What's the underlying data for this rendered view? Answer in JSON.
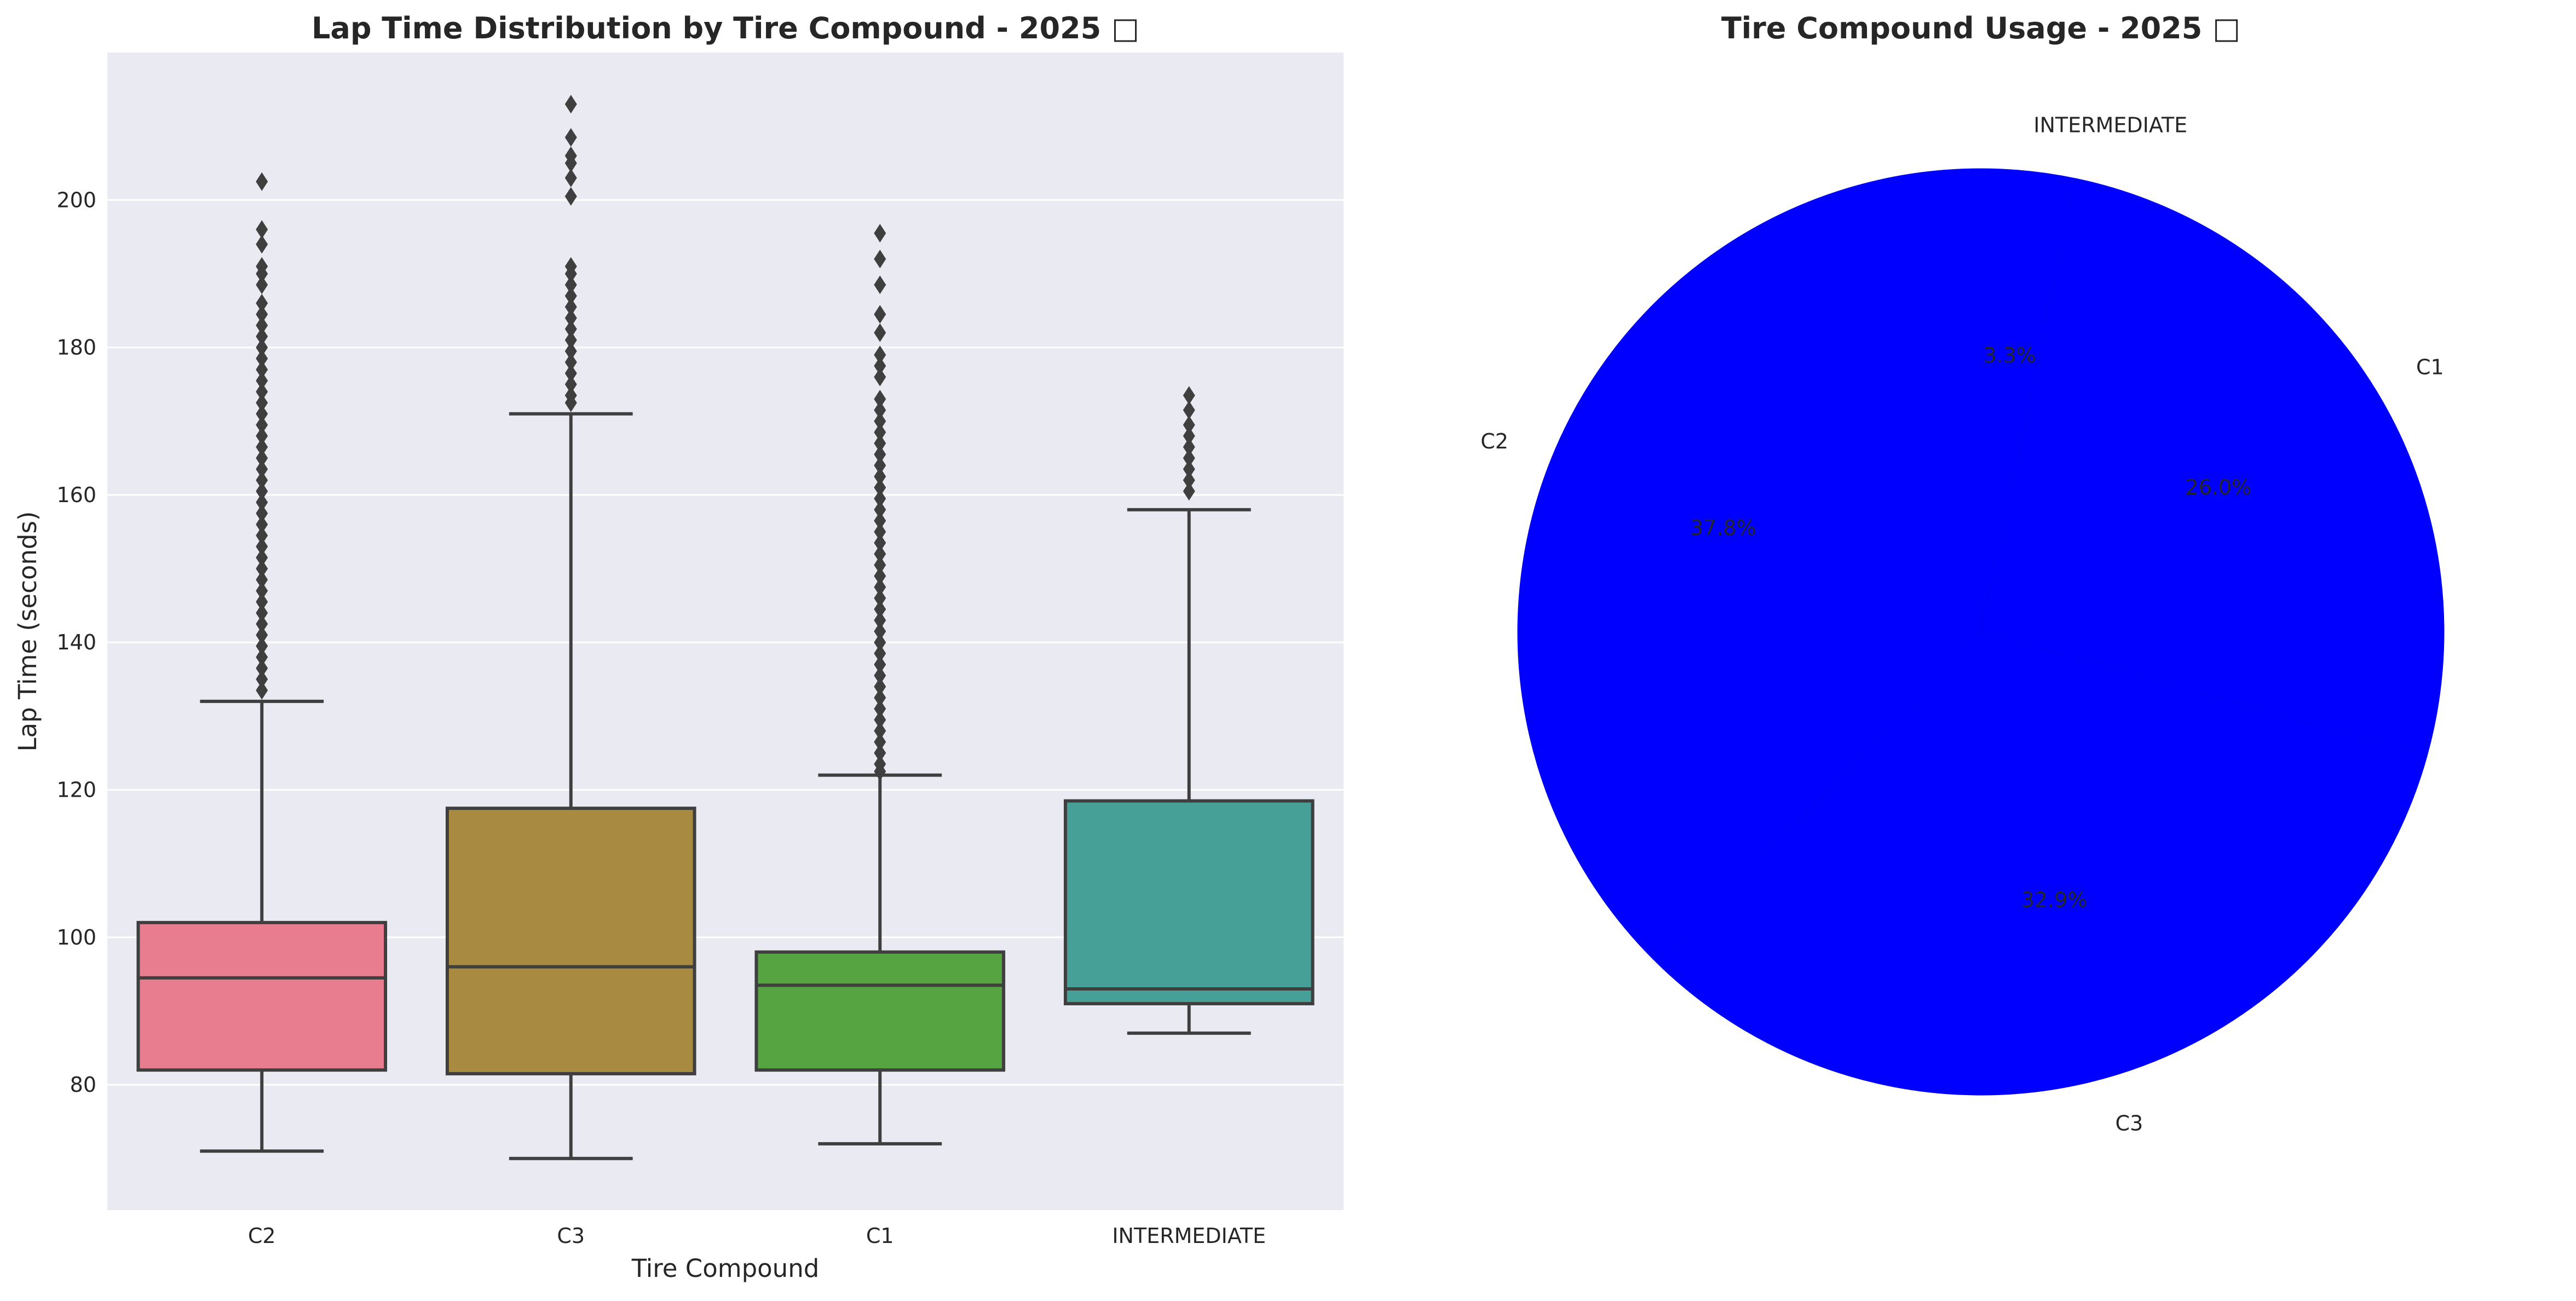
{
  "chart_data": [
    {
      "type": "box",
      "title": "Lap Time Distribution by Tire Compound - 2025 □",
      "xlabel": "Tire Compound",
      "ylabel": "Lap Time (seconds)",
      "ylim": [
        63,
        220
      ],
      "yticks": [
        80,
        100,
        120,
        140,
        160,
        180,
        200
      ],
      "grid": true,
      "background": "#eaeaf2",
      "categories": [
        "C2",
        "C3",
        "C1",
        "INTERMEDIATE"
      ],
      "colors": [
        "#e87d90",
        "#a88a41",
        "#56a441",
        "#47a098"
      ],
      "boxes": [
        {
          "category": "C2",
          "whisker_low": 71,
          "q1": 82,
          "median": 94.5,
          "q3": 102,
          "whisker_high": 132,
          "outliers": [
            202.5,
            196,
            194,
            191,
            190,
            188.5,
            186,
            184.5,
            183,
            181.5,
            180,
            178.5,
            177,
            175.5,
            174,
            172.5,
            171,
            169.5,
            168,
            166.5,
            165,
            163.5,
            162,
            160.5,
            159,
            157.5,
            156,
            154.5,
            153,
            151.5,
            150,
            148.5,
            147,
            145.5,
            144,
            142.5,
            141,
            139.5,
            138,
            136.5,
            135,
            133.5
          ]
        },
        {
          "category": "C3",
          "whisker_low": 70,
          "q1": 81.5,
          "median": 96,
          "q3": 117.5,
          "whisker_high": 171,
          "outliers": [
            213,
            208.5,
            206,
            205,
            203,
            200.5,
            191,
            190,
            188.5,
            187,
            185.5,
            184,
            182.5,
            181,
            179.5,
            178,
            176.5,
            175,
            173.5,
            172.5
          ]
        },
        {
          "category": "C1",
          "whisker_low": 72,
          "q1": 82,
          "median": 93.5,
          "q3": 98,
          "whisker_high": 122,
          "outliers": [
            195.5,
            192,
            188.5,
            184.5,
            182,
            179,
            177.5,
            176,
            173,
            171.5,
            170,
            168.5,
            167,
            165.5,
            164,
            162.5,
            161,
            159.5,
            158,
            156.5,
            155,
            153.5,
            152,
            150.5,
            149,
            147.5,
            146,
            144.5,
            143,
            141.5,
            140,
            138.5,
            137,
            135.5,
            134,
            132.5,
            131,
            129.5,
            128,
            126.5,
            125,
            123.5,
            122.5
          ]
        },
        {
          "category": "INTERMEDIATE",
          "whisker_low": 87,
          "q1": 91,
          "median": 93,
          "q3": 118.5,
          "whisker_high": 158,
          "outliers": [
            173.5,
            171.5,
            169.5,
            168,
            166.5,
            165,
            163.5,
            162,
            160.5
          ]
        }
      ]
    },
    {
      "type": "pie",
      "title": "Tire Compound Usage - 2025 □",
      "labels": [
        "INTERMEDIATE",
        "C1",
        "C3",
        "C2"
      ],
      "values": [
        3.3,
        26.0,
        32.9,
        37.8
      ],
      "autopct": [
        "3.3%",
        "26.0%",
        "32.9%",
        "37.8%"
      ],
      "colors": [
        "#0000ff",
        "#0000ff",
        "#0000ff",
        "#0000ff"
      ],
      "startangle": 90,
      "direction": "clockwise"
    }
  ]
}
